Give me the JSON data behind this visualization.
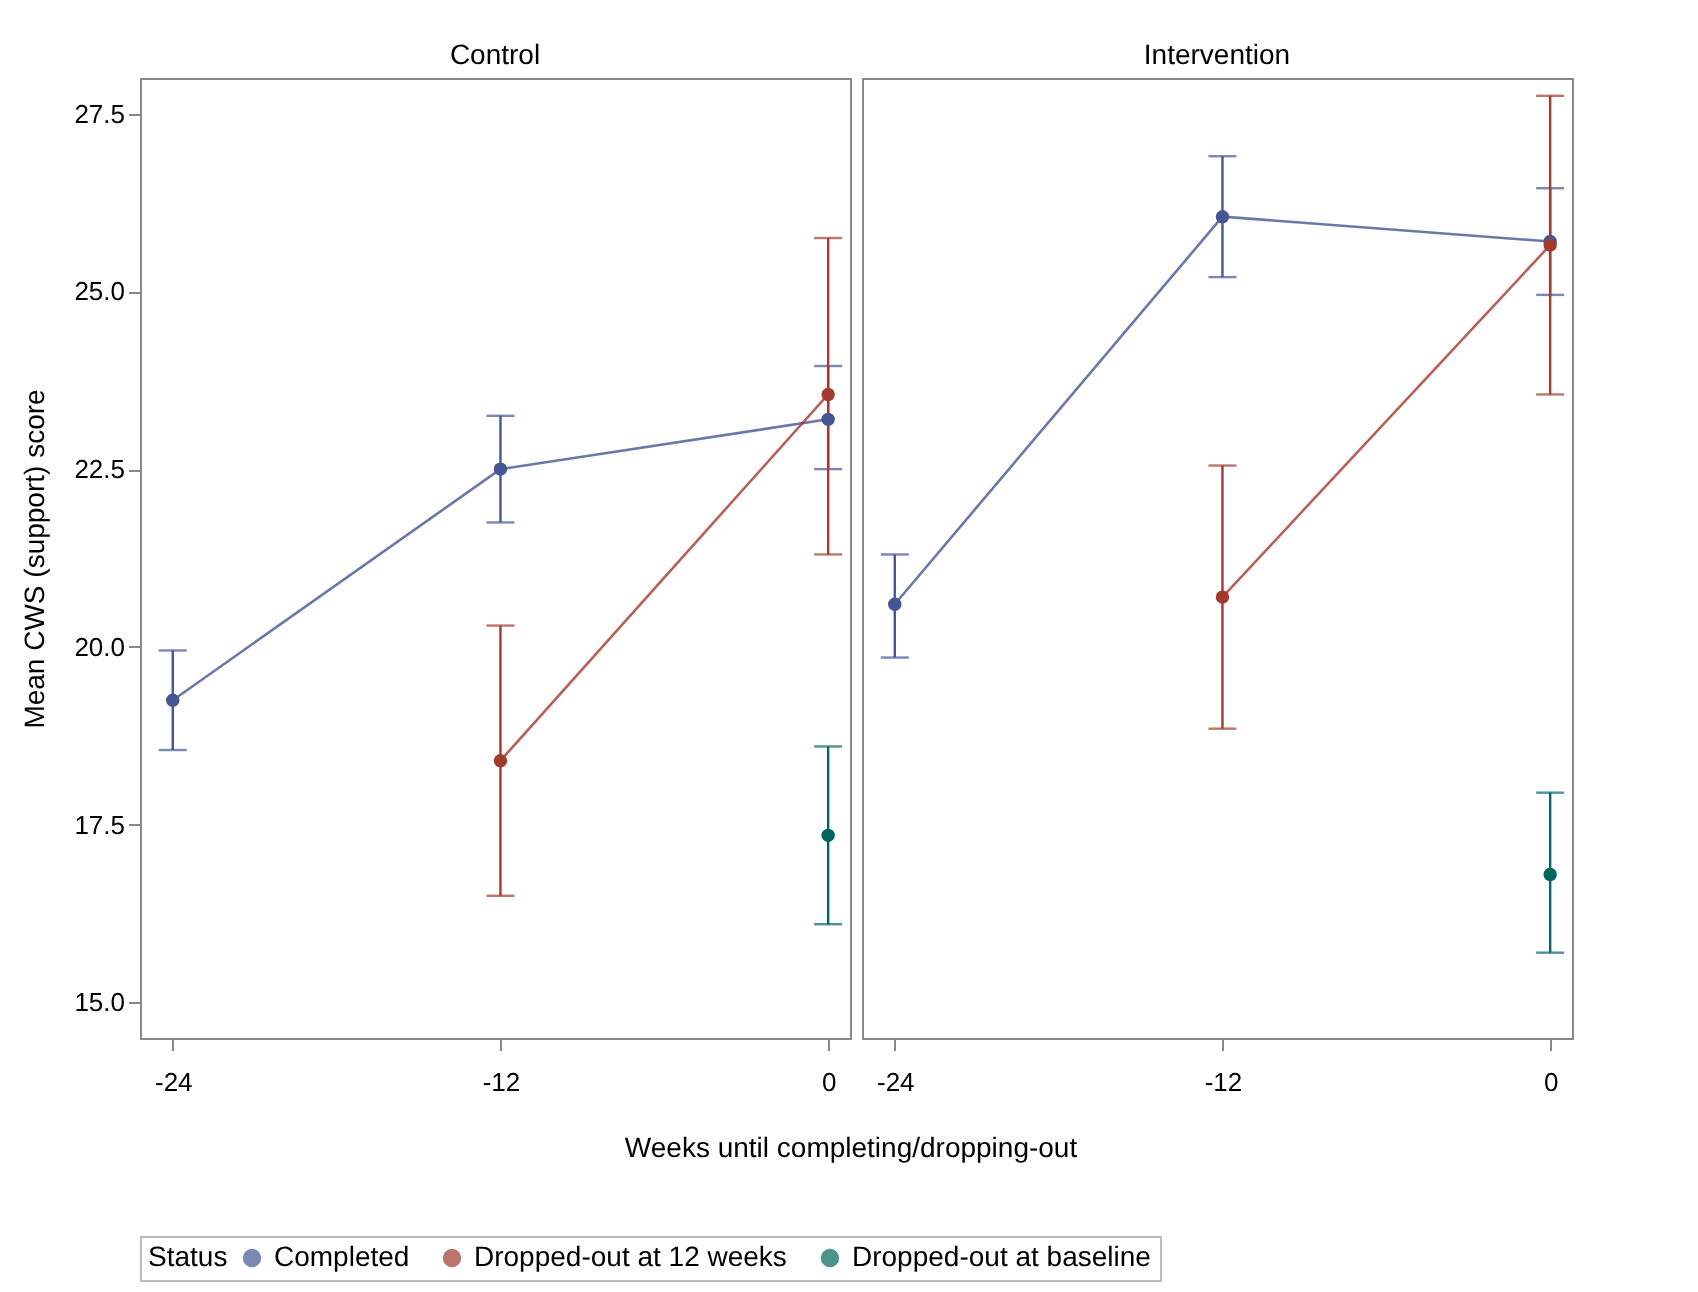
{
  "chart_data": [
    {
      "type": "line",
      "title": "Control",
      "xlabel": "Weeks until completing/dropping-out",
      "ylabel": "Mean CWS (support) score",
      "legend_title": "Status",
      "legend": "bottom",
      "marker": "circle",
      "grid": false,
      "xlim": [
        -25.2,
        0.8
      ],
      "xticks": [
        -24,
        -12,
        0
      ],
      "ylim": [
        14.5,
        28.0
      ],
      "yticks": [
        {
          "value": 15,
          "label": "15.0"
        },
        17.5,
        {
          "value": 20,
          "label": "20.0"
        },
        22.5,
        {
          "value": 25,
          "label": "25.0"
        },
        27.5
      ],
      "series": [
        {
          "name": "Completed",
          "color": "#445694",
          "x": [
            -24,
            -12,
            0
          ],
          "values": [
            19.25,
            22.5,
            23.2
          ],
          "errors": [
            [
              18.55,
              19.95
            ],
            [
              21.75,
              23.25
            ],
            [
              22.5,
              23.95
            ]
          ]
        },
        {
          "name": "Dropped-out at 12 weeks",
          "color": "#a23a2e",
          "x": [
            -12,
            0
          ],
          "values": [
            18.4,
            23.55
          ],
          "errors": [
            [
              16.5,
              20.3
            ],
            [
              21.3,
              25.75
            ]
          ]
        },
        {
          "name": "Dropped-out at baseline",
          "color": "#01665e",
          "x": [
            0
          ],
          "values": [
            17.35
          ],
          "errors": [
            [
              16.1,
              18.6
            ]
          ]
        }
      ]
    },
    {
      "type": "line",
      "title": "Intervention",
      "marker": "circle",
      "grid": false,
      "tick_labels": "x",
      "xlim": [
        -25.2,
        0.8
      ],
      "xticks": [
        -24,
        -12,
        0
      ],
      "ylim": [
        14.5,
        28.0
      ],
      "yticks": [
        15,
        17.5,
        20,
        22.5,
        25,
        27.5
      ],
      "series": [
        {
          "name": "Completed",
          "color": "#445694",
          "x": [
            -24,
            -12,
            0
          ],
          "values": [
            20.6,
            26.05,
            25.7
          ],
          "errors": [
            [
              19.85,
              21.3
            ],
            [
              25.2,
              26.9
            ],
            [
              24.95,
              26.45
            ]
          ]
        },
        {
          "name": "Dropped-out at 12 weeks",
          "color": "#a23a2e",
          "x": [
            -12,
            0
          ],
          "values": [
            20.7,
            25.65
          ],
          "errors": [
            [
              18.85,
              22.55
            ],
            [
              23.55,
              27.75
            ]
          ]
        },
        {
          "name": "Dropped-out at baseline",
          "color": "#01665e",
          "x": [
            0
          ],
          "values": [
            16.8
          ],
          "errors": [
            [
              15.7,
              17.95
            ]
          ]
        }
      ]
    }
  ]
}
